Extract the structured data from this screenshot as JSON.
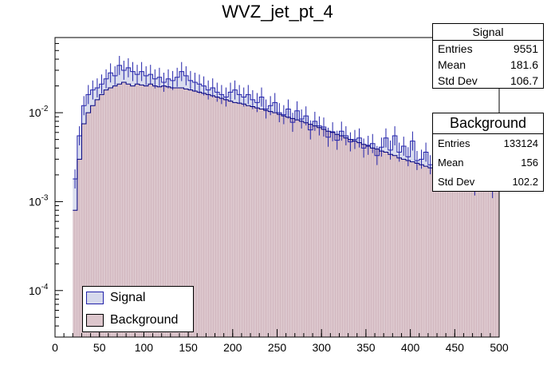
{
  "chart_data": {
    "type": "histogram",
    "title": "WVZ_jet_pt_4",
    "xlabel": "",
    "ylabel": "",
    "x_range": [
      0,
      500
    ],
    "y_scale": "log",
    "y_range": [
      3e-05,
      0.07
    ],
    "x_ticks": [
      "0",
      "50",
      "100",
      "150",
      "200",
      "250",
      "300",
      "350",
      "400",
      "450",
      "500"
    ],
    "y_ticks": [
      {
        "label": "10",
        "exp": "-4",
        "value": 0.0001
      },
      {
        "label": "10",
        "exp": "-3",
        "value": 0.001
      },
      {
        "label": "10",
        "exp": "-2",
        "value": 0.01
      }
    ],
    "bin_width": 5,
    "series": [
      {
        "name": "Signal",
        "line_color": "#2222aa",
        "fill_color": "#d6d9ec",
        "values": [
          0,
          0,
          0,
          0,
          0.0018,
          0.0055,
          0.012,
          0.016,
          0.018,
          0.019,
          0.021,
          0.024,
          0.028,
          0.026,
          0.034,
          0.03,
          0.032,
          0.029,
          0.027,
          0.029,
          0.026,
          0.027,
          0.024,
          0.025,
          0.022,
          0.024,
          0.023,
          0.025,
          0.029,
          0.026,
          0.023,
          0.022,
          0.021,
          0.02,
          0.018,
          0.019,
          0.017,
          0.016,
          0.015,
          0.017,
          0.018,
          0.016,
          0.015,
          0.016,
          0.014,
          0.013,
          0.015,
          0.011,
          0.012,
          0.013,
          0.01,
          0.0095,
          0.011,
          0.0078,
          0.0105,
          0.0085,
          0.0092,
          0.0064,
          0.008,
          0.0071,
          0.0069,
          0.0053,
          0.0061,
          0.0049,
          0.0062,
          0.0055,
          0.0047,
          0.005,
          0.0052,
          0.004,
          0.0043,
          0.0045,
          0.0033,
          0.0041,
          0.0052,
          0.0038,
          0.0055,
          0.0036,
          0.0042,
          0.0032,
          0.0048,
          0.0029,
          0.003,
          0.0036,
          0.0026,
          0.0032,
          0.0023,
          0.0028,
          0.0022,
          0.0027,
          0.0021,
          0.0024,
          0.0018,
          0.0022,
          0.0015,
          0.002,
          0.0017,
          0.0022,
          0.0014,
          0.0018
        ]
      },
      {
        "name": "Background",
        "line_color": "#000080",
        "fill_color": "#dcc6cc",
        "values": [
          0,
          0,
          0,
          0,
          0.0008,
          0.003,
          0.0075,
          0.01,
          0.012,
          0.014,
          0.016,
          0.018,
          0.019,
          0.02,
          0.021,
          0.022,
          0.021,
          0.02,
          0.021,
          0.0205,
          0.02,
          0.021,
          0.02,
          0.0195,
          0.02,
          0.0195,
          0.019,
          0.019,
          0.019,
          0.0185,
          0.018,
          0.0175,
          0.017,
          0.0165,
          0.016,
          0.0155,
          0.015,
          0.0145,
          0.014,
          0.0135,
          0.013,
          0.0128,
          0.0125,
          0.012,
          0.0117,
          0.0113,
          0.011,
          0.0106,
          0.0103,
          0.01,
          0.0096,
          0.0092,
          0.0089,
          0.0086,
          0.0083,
          0.008,
          0.0077,
          0.0074,
          0.0071,
          0.0068,
          0.0065,
          0.0062,
          0.006,
          0.0057,
          0.0055,
          0.0052,
          0.005,
          0.0048,
          0.0046,
          0.0044,
          0.0042,
          0.004,
          0.0039,
          0.0037,
          0.0036,
          0.0034,
          0.0033,
          0.0031,
          0.003,
          0.0029,
          0.0028,
          0.0027,
          0.0026,
          0.0025,
          0.0024,
          0.0023,
          0.0022,
          0.0021,
          0.002,
          0.0019,
          0.00185,
          0.0018,
          0.00175,
          0.0017,
          0.00165,
          0.0016,
          0.00155,
          0.0015,
          0.00145,
          0.0014
        ]
      }
    ],
    "stats": {
      "signal": {
        "title": "Signal",
        "entries_label": "Entries",
        "entries": "9551",
        "mean_label": "Mean",
        "mean": "181.6",
        "stddev_label": "Std Dev",
        "stddev": "106.7"
      },
      "background": {
        "title": "Background",
        "entries_label": "Entries",
        "entries": "133124",
        "mean_label": "Mean",
        "mean": "156",
        "stddev_label": "Std Dev",
        "stddev": "102.2"
      }
    },
    "legend": {
      "position": "bottom-left",
      "entries": [
        "Signal",
        "Background"
      ]
    }
  }
}
